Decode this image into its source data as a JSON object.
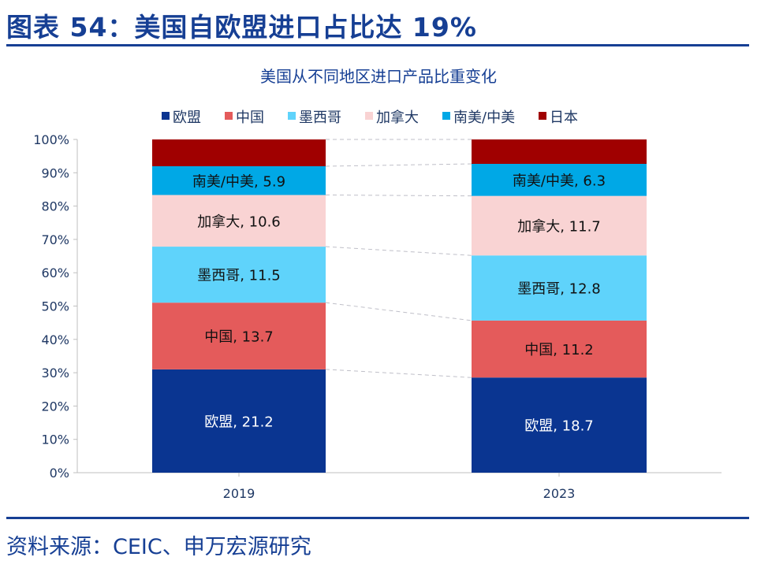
{
  "header": {
    "title": "图表 54：美国自欧盟进口占比达 19%"
  },
  "footer": {
    "source": "资料来源：CEIC、申万宏源研究"
  },
  "chart_data": {
    "type": "bar",
    "stacked": "percent",
    "title": "美国从不同地区进口产品比重变化",
    "categories": [
      "2019",
      "2023"
    ],
    "series": [
      {
        "name": "欧盟",
        "values": [
          21.2,
          18.7
        ],
        "color": "#0a3591"
      },
      {
        "name": "中国",
        "values": [
          13.7,
          11.2
        ],
        "color": "#e45b5b"
      },
      {
        "name": "墨西哥",
        "values": [
          11.5,
          12.8
        ],
        "color": "#5fd3fb"
      },
      {
        "name": "加拿大",
        "values": [
          10.6,
          11.7
        ],
        "color": "#f9d3d3"
      },
      {
        "name": "南美/中美",
        "values": [
          5.9,
          6.3
        ],
        "color": "#00a8e6"
      },
      {
        "name": "日本",
        "values": [
          5.5,
          4.8
        ],
        "color": "#a00000"
      }
    ],
    "labeled_series": [
      "欧盟",
      "中国",
      "墨西哥",
      "加拿大",
      "南美/中美"
    ],
    "yticks": [
      "0%",
      "10%",
      "20%",
      "30%",
      "40%",
      "50%",
      "60%",
      "70%",
      "80%",
      "90%",
      "100%"
    ],
    "ylim": [
      0,
      100
    ],
    "legend": "top",
    "grid": false,
    "connector_lines": "dashed"
  }
}
